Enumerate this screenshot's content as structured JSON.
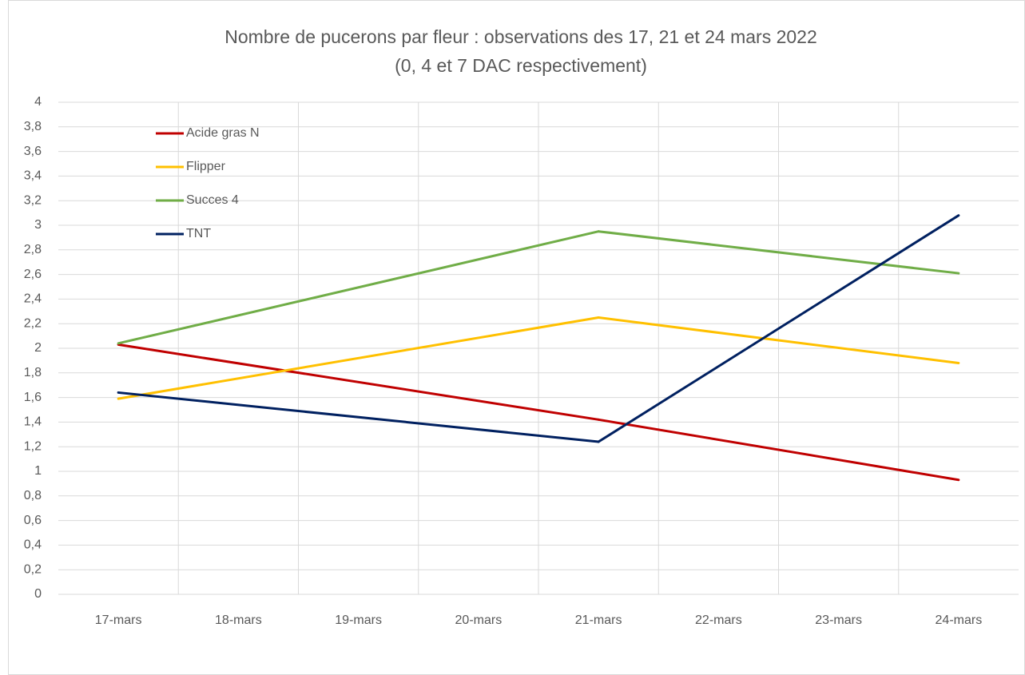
{
  "chart_data": {
    "type": "line",
    "title": "Nombre de pucerons par fleur : observations des 17, 21 et 24 mars 2022",
    "subtitle": "(0, 4 et 7 DAC respectivement)",
    "categories": [
      "17-mars",
      "18-mars",
      "19-mars",
      "20-mars",
      "21-mars",
      "22-mars",
      "23-mars",
      "24-mars"
    ],
    "series": [
      {
        "name": "Acide gras N",
        "color": "#c00000",
        "values": [
          2.03,
          null,
          null,
          null,
          1.42,
          null,
          null,
          0.93
        ]
      },
      {
        "name": "Flipper",
        "color": "#ffc000",
        "values": [
          1.59,
          null,
          null,
          null,
          2.25,
          null,
          null,
          1.88
        ]
      },
      {
        "name": "Succes 4",
        "color": "#70ad47",
        "values": [
          2.04,
          null,
          null,
          null,
          2.95,
          null,
          null,
          2.61
        ]
      },
      {
        "name": "TNT",
        "color": "#002060",
        "values": [
          1.64,
          null,
          null,
          null,
          1.24,
          null,
          null,
          3.08
        ]
      }
    ],
    "ylim": [
      0,
      4
    ],
    "yticks": [
      0,
      {
        "value": 0.2,
        "label": "0,2"
      },
      {
        "value": 0.4,
        "label": "0,4"
      },
      {
        "value": 0.6,
        "label": "0,6"
      },
      {
        "value": 0.8,
        "label": "0,8"
      },
      1,
      {
        "value": 1.2,
        "label": "1,2"
      },
      {
        "value": 1.4,
        "label": "1,4"
      },
      {
        "value": 1.6,
        "label": "1,6"
      },
      {
        "value": 1.8,
        "label": "1,8"
      },
      2,
      {
        "value": 2.2,
        "label": "2,2"
      },
      {
        "value": 2.4,
        "label": "2,4"
      },
      {
        "value": 2.6,
        "label": "2,6"
      },
      {
        "value": 2.8,
        "label": "2,8"
      },
      3,
      {
        "value": 3.2,
        "label": "3,2"
      },
      {
        "value": 3.4,
        "label": "3,4"
      },
      {
        "value": 3.6,
        "label": "3,6"
      },
      {
        "value": 3.8,
        "label": "3,8"
      },
      4
    ],
    "grid": true,
    "legend": "top-left"
  }
}
